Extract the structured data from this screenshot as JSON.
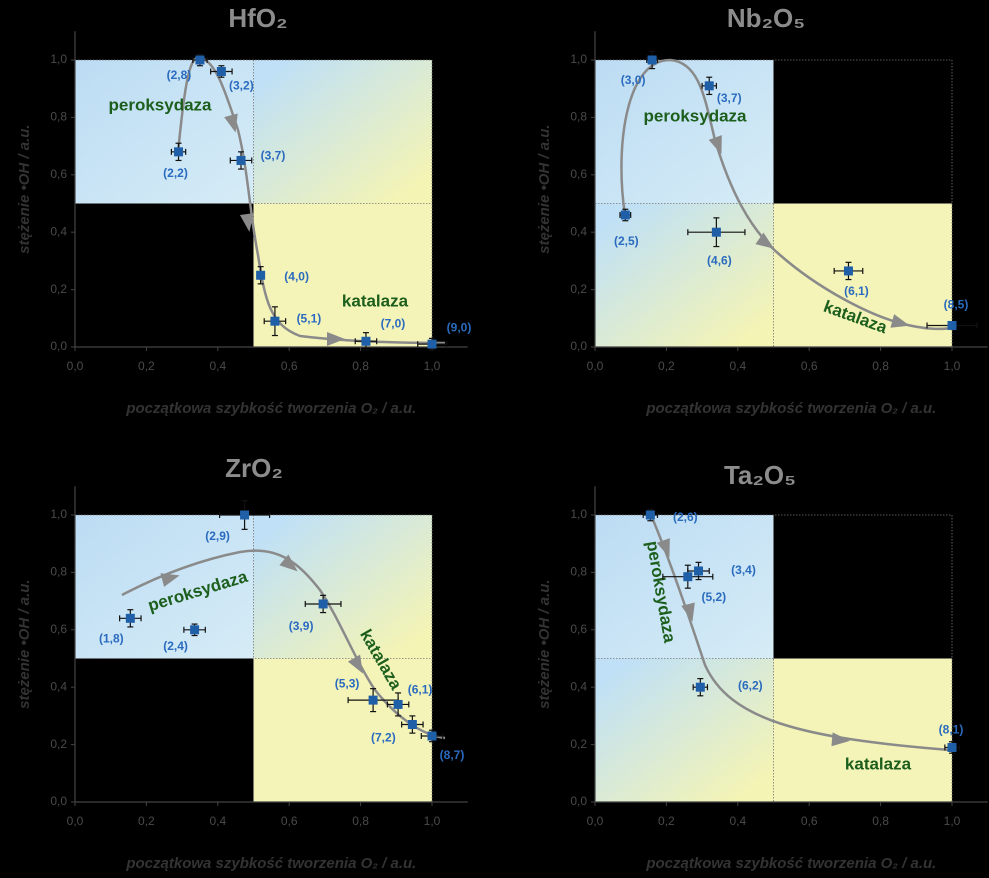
{
  "chart_data": [
    {
      "type": "scatter",
      "title": "HfO₂",
      "x_label": "początkowa szybkość tworzenia O₂ / a.u.",
      "y_label": "stężenie •OH / a.u.",
      "annotations": [
        "peroksydaza",
        "katalaza"
      ],
      "color": "#1f5fa8",
      "x": [
        0.29,
        0.35,
        0.41,
        0.465,
        0.52,
        0.56,
        0.815,
        1.0
      ],
      "values": [
        0.68,
        1.0,
        0.96,
        0.65,
        0.25,
        0.09,
        0.02,
        0.01
      ],
      "x_errors": [
        0.02,
        0.02,
        0.03,
        0.03,
        0.01,
        0.03,
        0.03,
        0.04
      ],
      "y_errors": [
        0.03,
        0.02,
        0.02,
        0.03,
        0.03,
        0.05,
        0.03,
        0.02
      ],
      "point_labels": [
        "(2,2)",
        "(2,8)",
        "(3,2)",
        "(3,7)",
        "(4,0)",
        "(5,1)",
        "(7,0)",
        "(9,0)"
      ],
      "xlim": [
        0,
        1.1
      ],
      "ylim": [
        0,
        1.1
      ],
      "xticks": [
        {
          "value": 0,
          "label": "0,0"
        },
        {
          "value": 0.2,
          "label": "0,2"
        },
        {
          "value": 0.4,
          "label": "0,4"
        },
        {
          "value": 0.6,
          "label": "0,6"
        },
        {
          "value": 0.8,
          "label": "0,8"
        },
        {
          "value": 1.0,
          "label": "1,0"
        }
      ],
      "yticks": [
        {
          "value": 0,
          "label": "0,0"
        },
        {
          "value": 0.2,
          "label": "0,2"
        },
        {
          "value": 0.4,
          "label": "0,4"
        },
        {
          "value": 0.6,
          "label": "0,6"
        },
        {
          "value": 0.8,
          "label": "0,8"
        },
        {
          "value": 1.0,
          "label": "1,0"
        }
      ]
    },
    {
      "type": "scatter",
      "title": "Nb₂O₅",
      "x_label": "początkowa szybkość tworzenia O₂ / a.u.",
      "y_label": "stężenie •OH / a.u.",
      "annotations": [
        "peroksydaza",
        "katalaza"
      ],
      "color": "#1f5fa8",
      "x": [
        0.085,
        0.16,
        0.32,
        0.34,
        0.71,
        1.0
      ],
      "values": [
        0.46,
        1.0,
        0.91,
        0.4,
        0.265,
        0.075
      ],
      "x_errors": [
        0.015,
        0.015,
        0.02,
        0.08,
        0.04,
        0.07
      ],
      "y_errors": [
        0.02,
        0.03,
        0.03,
        0.05,
        0.03,
        0.01
      ],
      "point_labels": [
        "(2,5)",
        "(3,0)",
        "(3,7)",
        "(4,6)",
        "(6,1)",
        "(8,5)"
      ],
      "xlim": [
        0,
        1.1
      ],
      "ylim": [
        0,
        1.1
      ],
      "xticks": [
        {
          "value": 0,
          "label": "0,0"
        },
        {
          "value": 0.2,
          "label": "0,2"
        },
        {
          "value": 0.4,
          "label": "0,4"
        },
        {
          "value": 0.6,
          "label": "0,6"
        },
        {
          "value": 0.8,
          "label": "0,8"
        },
        {
          "value": 1.0,
          "label": "1,0"
        }
      ],
      "yticks": [
        {
          "value": 0,
          "label": "0,0"
        },
        {
          "value": 0.2,
          "label": "0,2"
        },
        {
          "value": 0.4,
          "label": "0,4"
        },
        {
          "value": 0.6,
          "label": "0,6"
        },
        {
          "value": 0.8,
          "label": "0,8"
        },
        {
          "value": 1.0,
          "label": "1,0"
        }
      ]
    },
    {
      "type": "scatter",
      "title": "ZrO₂",
      "x_label": "początkowa szybkość tworzenia O₂ / a.u.",
      "y_label": "stężenie •OH / a.u.",
      "annotations": [
        "peroksydaza",
        "katalaza"
      ],
      "color": "#1f5fa8",
      "x": [
        0.155,
        0.335,
        0.475,
        0.695,
        0.835,
        0.905,
        0.945,
        1.0
      ],
      "values": [
        0.64,
        0.6,
        1.0,
        0.69,
        0.355,
        0.34,
        0.27,
        0.23
      ],
      "x_errors": [
        0.03,
        0.03,
        0.07,
        0.05,
        0.07,
        0.03,
        0.03,
        0.03
      ],
      "y_errors": [
        0.03,
        0.02,
        0.05,
        0.03,
        0.04,
        0.04,
        0.03,
        0.02
      ],
      "point_labels": [
        "(1,8)",
        "(2,4)",
        "(2,9)",
        "(3,9)",
        "(5,3)",
        "(6,1)",
        "(7,2)",
        "(8,7)"
      ],
      "xlim": [
        0,
        1.1
      ],
      "ylim": [
        0,
        1.1
      ],
      "xticks": [
        {
          "value": 0,
          "label": "0,0"
        },
        {
          "value": 0.2,
          "label": "0,2"
        },
        {
          "value": 0.4,
          "label": "0,4"
        },
        {
          "value": 0.6,
          "label": "0,6"
        },
        {
          "value": 0.8,
          "label": "0,8"
        },
        {
          "value": 1.0,
          "label": "1,0"
        }
      ],
      "yticks": [
        {
          "value": 0,
          "label": "0,0"
        },
        {
          "value": 0.2,
          "label": "0,2"
        },
        {
          "value": 0.4,
          "label": "0,4"
        },
        {
          "value": 0.6,
          "label": "0,6"
        },
        {
          "value": 0.8,
          "label": "0,8"
        },
        {
          "value": 1.0,
          "label": "1,0"
        }
      ]
    },
    {
      "type": "scatter",
      "title": "Ta₂O₅",
      "x_label": "początkowa szybkość tworzenia O₂ / a.u.",
      "y_label": "stężenie •OH / a.u.",
      "annotations": [
        "peroksydaza",
        "katalaza"
      ],
      "color": "#1f5fa8",
      "x": [
        0.155,
        0.29,
        0.26,
        0.295,
        1.0
      ],
      "values": [
        1.0,
        0.805,
        0.785,
        0.4,
        0.19
      ],
      "x_errors": [
        0.02,
        0.03,
        0.07,
        0.02,
        0.02
      ],
      "y_errors": [
        0.02,
        0.03,
        0.04,
        0.03,
        0.02
      ],
      "point_labels": [
        "(2,6)",
        "(3,4)",
        "(5,2)",
        "(6,2)",
        "(8,1)"
      ],
      "xlim": [
        0,
        1.1
      ],
      "ylim": [
        0,
        1.1
      ],
      "xticks": [
        {
          "value": 0,
          "label": "0,0"
        },
        {
          "value": 0.2,
          "label": "0,2"
        },
        {
          "value": 0.4,
          "label": "0,4"
        },
        {
          "value": 0.6,
          "label": "0,6"
        },
        {
          "value": 0.8,
          "label": "0,8"
        },
        {
          "value": 1.0,
          "label": "1,0"
        }
      ],
      "yticks": [
        {
          "value": 0,
          "label": "0,0"
        },
        {
          "value": 0.2,
          "label": "0,2"
        },
        {
          "value": 0.4,
          "label": "0,4"
        },
        {
          "value": 0.6,
          "label": "0,6"
        },
        {
          "value": 0.8,
          "label": "0,8"
        },
        {
          "value": 1.0,
          "label": "1,0"
        }
      ]
    }
  ]
}
